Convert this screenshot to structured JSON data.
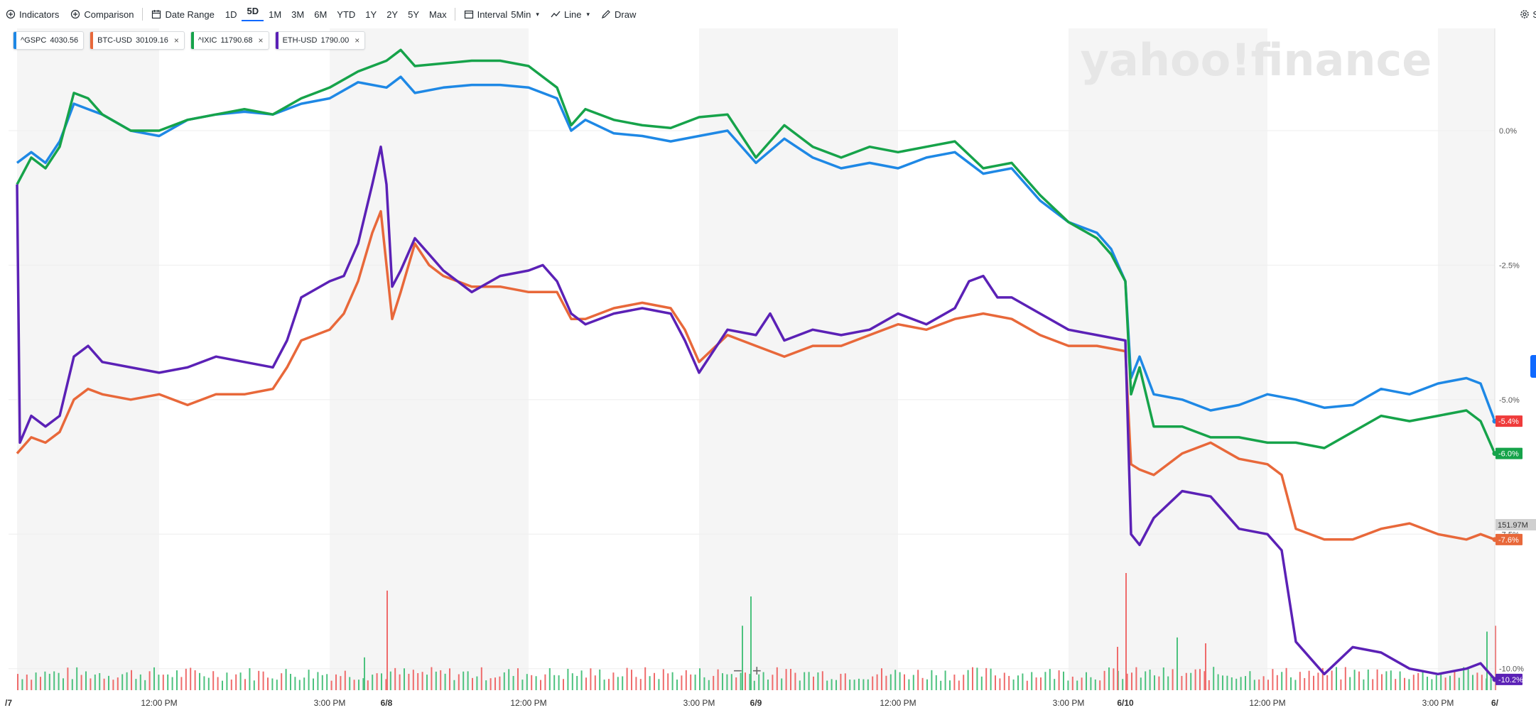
{
  "toolbar": {
    "indicators": "Indicators",
    "comparison": "Comparison",
    "date_range": "Date Range",
    "ranges": [
      "1D",
      "5D",
      "1M",
      "3M",
      "6M",
      "YTD",
      "1Y",
      "2Y",
      "5Y",
      "Max"
    ],
    "active_range": "5D",
    "interval": "Interval",
    "interval_value": "5Min",
    "line": "Line",
    "draw": "Draw",
    "settings": "S"
  },
  "chips": [
    {
      "symbol": "^GSPC",
      "value": "4030.56",
      "color": "#1e88e5",
      "closable": false
    },
    {
      "symbol": "BTC-USD",
      "value": "30109.16",
      "color": "#e8683a",
      "closable": true
    },
    {
      "symbol": "^IXIC",
      "value": "11790.68",
      "color": "#16a34a",
      "closable": true
    },
    {
      "symbol": "ETH-USD",
      "value": "1790.00",
      "color": "#5b21b6",
      "closable": true
    }
  ],
  "watermark": "yahoo!finance",
  "zoom": {
    "minus": "−",
    "plus": "+"
  },
  "chart_data": {
    "type": "line",
    "y_unit": "percent change",
    "ylim": [
      -10.4,
      1.9
    ],
    "y_ticks": [
      0.0,
      -2.5,
      -5.0,
      -7.5,
      -10.0
    ],
    "y_tick_labels": [
      "0.0%",
      "-2.5%",
      "-5.0%",
      "-7.5%",
      "-10.0%"
    ],
    "x_range": [
      -0.03,
      5.2
    ],
    "x_ticks": [
      {
        "x": 0.5,
        "label": "12:00 PM"
      },
      {
        "x": 1.1,
        "label": "3:00 PM"
      },
      {
        "x": 1.3,
        "label": "6/8",
        "bold": true
      },
      {
        "x": 1.8,
        "label": "12:00 PM"
      },
      {
        "x": 2.4,
        "label": "3:00 PM"
      },
      {
        "x": 2.6,
        "label": "6/9",
        "bold": true
      },
      {
        "x": 3.1,
        "label": "12:00 PM"
      },
      {
        "x": 3.7,
        "label": "3:00 PM"
      },
      {
        "x": 3.9,
        "label": "6/10",
        "bold": true
      },
      {
        "x": 4.4,
        "label": "12:00 PM"
      },
      {
        "x": 5.0,
        "label": "3:00 PM"
      },
      {
        "x": 5.2,
        "label": "6/",
        "bold": true
      },
      {
        "x": -0.03,
        "label": "/7",
        "bold": true
      }
    ],
    "shaded_x_ranges": [
      [
        0,
        0.5
      ],
      [
        1.1,
        1.8
      ],
      [
        2.4,
        3.1
      ],
      [
        3.7,
        4.4
      ],
      [
        5.0,
        5.2
      ]
    ],
    "series": [
      {
        "name": "^GSPC",
        "color": "#1e88e5",
        "last_label": "-5.4%",
        "last_bg": "#ef3b3b",
        "points": [
          [
            0,
            -0.6
          ],
          [
            0.05,
            -0.4
          ],
          [
            0.1,
            -0.6
          ],
          [
            0.15,
            -0.2
          ],
          [
            0.2,
            0.5
          ],
          [
            0.25,
            0.4
          ],
          [
            0.3,
            0.3
          ],
          [
            0.4,
            0.0
          ],
          [
            0.5,
            -0.1
          ],
          [
            0.6,
            0.2
          ],
          [
            0.7,
            0.3
          ],
          [
            0.8,
            0.35
          ],
          [
            0.9,
            0.3
          ],
          [
            1.0,
            0.5
          ],
          [
            1.1,
            0.6
          ],
          [
            1.2,
            0.9
          ],
          [
            1.3,
            0.8
          ],
          [
            1.35,
            1.0
          ],
          [
            1.4,
            0.7
          ],
          [
            1.5,
            0.8
          ],
          [
            1.6,
            0.85
          ],
          [
            1.7,
            0.85
          ],
          [
            1.8,
            0.8
          ],
          [
            1.9,
            0.6
          ],
          [
            1.95,
            0.0
          ],
          [
            2.0,
            0.2
          ],
          [
            2.1,
            -0.05
          ],
          [
            2.2,
            -0.1
          ],
          [
            2.3,
            -0.2
          ],
          [
            2.4,
            -0.1
          ],
          [
            2.5,
            0.0
          ],
          [
            2.6,
            -0.6
          ],
          [
            2.7,
            -0.15
          ],
          [
            2.8,
            -0.5
          ],
          [
            2.9,
            -0.7
          ],
          [
            3.0,
            -0.6
          ],
          [
            3.1,
            -0.7
          ],
          [
            3.2,
            -0.5
          ],
          [
            3.3,
            -0.4
          ],
          [
            3.4,
            -0.8
          ],
          [
            3.5,
            -0.7
          ],
          [
            3.6,
            -1.3
          ],
          [
            3.7,
            -1.7
          ],
          [
            3.8,
            -1.9
          ],
          [
            3.85,
            -2.2
          ],
          [
            3.9,
            -2.8
          ],
          [
            3.92,
            -4.6
          ],
          [
            3.95,
            -4.2
          ],
          [
            4.0,
            -4.9
          ],
          [
            4.1,
            -5.0
          ],
          [
            4.2,
            -5.2
          ],
          [
            4.3,
            -5.1
          ],
          [
            4.4,
            -4.9
          ],
          [
            4.5,
            -5.0
          ],
          [
            4.6,
            -5.15
          ],
          [
            4.7,
            -5.1
          ],
          [
            4.8,
            -4.8
          ],
          [
            4.9,
            -4.9
          ],
          [
            5.0,
            -4.7
          ],
          [
            5.1,
            -4.6
          ],
          [
            5.15,
            -4.7
          ],
          [
            5.2,
            -5.4
          ]
        ]
      },
      {
        "name": "^IXIC",
        "color": "#16a34a",
        "last_label": "-6.0%",
        "last_bg": "#16a34a",
        "points": [
          [
            0,
            -1.0
          ],
          [
            0.05,
            -0.5
          ],
          [
            0.1,
            -0.7
          ],
          [
            0.15,
            -0.3
          ],
          [
            0.2,
            0.7
          ],
          [
            0.25,
            0.6
          ],
          [
            0.3,
            0.3
          ],
          [
            0.4,
            0.0
          ],
          [
            0.5,
            0.0
          ],
          [
            0.6,
            0.2
          ],
          [
            0.7,
            0.3
          ],
          [
            0.8,
            0.4
          ],
          [
            0.9,
            0.3
          ],
          [
            1.0,
            0.6
          ],
          [
            1.1,
            0.8
          ],
          [
            1.2,
            1.1
          ],
          [
            1.3,
            1.3
          ],
          [
            1.35,
            1.5
          ],
          [
            1.4,
            1.2
          ],
          [
            1.5,
            1.25
          ],
          [
            1.6,
            1.3
          ],
          [
            1.7,
            1.3
          ],
          [
            1.8,
            1.2
          ],
          [
            1.9,
            0.8
          ],
          [
            1.95,
            0.1
          ],
          [
            2.0,
            0.4
          ],
          [
            2.1,
            0.2
          ],
          [
            2.2,
            0.1
          ],
          [
            2.3,
            0.05
          ],
          [
            2.4,
            0.25
          ],
          [
            2.5,
            0.3
          ],
          [
            2.6,
            -0.5
          ],
          [
            2.7,
            0.1
          ],
          [
            2.8,
            -0.3
          ],
          [
            2.9,
            -0.5
          ],
          [
            3.0,
            -0.3
          ],
          [
            3.1,
            -0.4
          ],
          [
            3.2,
            -0.3
          ],
          [
            3.3,
            -0.2
          ],
          [
            3.4,
            -0.7
          ],
          [
            3.5,
            -0.6
          ],
          [
            3.6,
            -1.2
          ],
          [
            3.7,
            -1.7
          ],
          [
            3.8,
            -2.0
          ],
          [
            3.85,
            -2.3
          ],
          [
            3.9,
            -2.8
          ],
          [
            3.92,
            -4.9
          ],
          [
            3.95,
            -4.4
          ],
          [
            4.0,
            -5.5
          ],
          [
            4.1,
            -5.5
          ],
          [
            4.2,
            -5.7
          ],
          [
            4.3,
            -5.7
          ],
          [
            4.4,
            -5.8
          ],
          [
            4.5,
            -5.8
          ],
          [
            4.6,
            -5.9
          ],
          [
            4.7,
            -5.6
          ],
          [
            4.8,
            -5.3
          ],
          [
            4.9,
            -5.4
          ],
          [
            5.0,
            -5.3
          ],
          [
            5.1,
            -5.2
          ],
          [
            5.15,
            -5.4
          ],
          [
            5.2,
            -6.0
          ]
        ]
      },
      {
        "name": "BTC-USD",
        "color": "#e8683a",
        "last_label": "-7.6%",
        "last_bg": "#e8683a",
        "points": [
          [
            0,
            -6.0
          ],
          [
            0.05,
            -5.7
          ],
          [
            0.1,
            -5.8
          ],
          [
            0.15,
            -5.6
          ],
          [
            0.2,
            -5.0
          ],
          [
            0.25,
            -4.8
          ],
          [
            0.3,
            -4.9
          ],
          [
            0.4,
            -5.0
          ],
          [
            0.5,
            -4.9
          ],
          [
            0.6,
            -5.1
          ],
          [
            0.7,
            -4.9
          ],
          [
            0.8,
            -4.9
          ],
          [
            0.9,
            -4.8
          ],
          [
            0.95,
            -4.4
          ],
          [
            1.0,
            -3.9
          ],
          [
            1.1,
            -3.7
          ],
          [
            1.15,
            -3.4
          ],
          [
            1.2,
            -2.8
          ],
          [
            1.25,
            -1.9
          ],
          [
            1.28,
            -1.5
          ],
          [
            1.3,
            -2.5
          ],
          [
            1.32,
            -3.5
          ],
          [
            1.35,
            -3.0
          ],
          [
            1.4,
            -2.1
          ],
          [
            1.45,
            -2.5
          ],
          [
            1.5,
            -2.7
          ],
          [
            1.6,
            -2.9
          ],
          [
            1.7,
            -2.9
          ],
          [
            1.8,
            -3.0
          ],
          [
            1.9,
            -3.0
          ],
          [
            1.95,
            -3.5
          ],
          [
            2.0,
            -3.5
          ],
          [
            2.1,
            -3.3
          ],
          [
            2.2,
            -3.2
          ],
          [
            2.3,
            -3.3
          ],
          [
            2.35,
            -3.7
          ],
          [
            2.4,
            -4.3
          ],
          [
            2.5,
            -3.8
          ],
          [
            2.6,
            -4.0
          ],
          [
            2.7,
            -4.2
          ],
          [
            2.8,
            -4.0
          ],
          [
            2.9,
            -4.0
          ],
          [
            3.0,
            -3.8
          ],
          [
            3.1,
            -3.6
          ],
          [
            3.2,
            -3.7
          ],
          [
            3.3,
            -3.5
          ],
          [
            3.4,
            -3.4
          ],
          [
            3.5,
            -3.5
          ],
          [
            3.6,
            -3.8
          ],
          [
            3.7,
            -4.0
          ],
          [
            3.8,
            -4.0
          ],
          [
            3.9,
            -4.1
          ],
          [
            3.92,
            -6.2
          ],
          [
            3.95,
            -6.3
          ],
          [
            4.0,
            -6.4
          ],
          [
            4.1,
            -6.0
          ],
          [
            4.2,
            -5.8
          ],
          [
            4.3,
            -6.1
          ],
          [
            4.4,
            -6.2
          ],
          [
            4.45,
            -6.4
          ],
          [
            4.5,
            -7.4
          ],
          [
            4.6,
            -7.6
          ],
          [
            4.7,
            -7.6
          ],
          [
            4.8,
            -7.4
          ],
          [
            4.9,
            -7.3
          ],
          [
            5.0,
            -7.5
          ],
          [
            5.1,
            -7.6
          ],
          [
            5.15,
            -7.5
          ],
          [
            5.2,
            -7.6
          ]
        ]
      },
      {
        "name": "ETH-USD",
        "color": "#5b21b6",
        "last_label": "-10.2%",
        "last_bg": "#5b21b6",
        "points": [
          [
            0,
            -1.0
          ],
          [
            0.01,
            -5.8
          ],
          [
            0.05,
            -5.3
          ],
          [
            0.1,
            -5.5
          ],
          [
            0.15,
            -5.3
          ],
          [
            0.2,
            -4.2
          ],
          [
            0.25,
            -4.0
          ],
          [
            0.3,
            -4.3
          ],
          [
            0.4,
            -4.4
          ],
          [
            0.5,
            -4.5
          ],
          [
            0.6,
            -4.4
          ],
          [
            0.7,
            -4.2
          ],
          [
            0.8,
            -4.3
          ],
          [
            0.9,
            -4.4
          ],
          [
            0.95,
            -3.9
          ],
          [
            1.0,
            -3.1
          ],
          [
            1.1,
            -2.8
          ],
          [
            1.15,
            -2.7
          ],
          [
            1.2,
            -2.1
          ],
          [
            1.25,
            -1.0
          ],
          [
            1.28,
            -0.3
          ],
          [
            1.3,
            -1.0
          ],
          [
            1.32,
            -2.9
          ],
          [
            1.35,
            -2.6
          ],
          [
            1.4,
            -2.0
          ],
          [
            1.45,
            -2.3
          ],
          [
            1.5,
            -2.6
          ],
          [
            1.6,
            -3.0
          ],
          [
            1.7,
            -2.7
          ],
          [
            1.8,
            -2.6
          ],
          [
            1.85,
            -2.5
          ],
          [
            1.9,
            -2.8
          ],
          [
            1.95,
            -3.4
          ],
          [
            2.0,
            -3.6
          ],
          [
            2.1,
            -3.4
          ],
          [
            2.2,
            -3.3
          ],
          [
            2.3,
            -3.4
          ],
          [
            2.35,
            -3.9
          ],
          [
            2.4,
            -4.5
          ],
          [
            2.5,
            -3.7
          ],
          [
            2.6,
            -3.8
          ],
          [
            2.65,
            -3.4
          ],
          [
            2.7,
            -3.9
          ],
          [
            2.8,
            -3.7
          ],
          [
            2.9,
            -3.8
          ],
          [
            3.0,
            -3.7
          ],
          [
            3.1,
            -3.4
          ],
          [
            3.2,
            -3.6
          ],
          [
            3.3,
            -3.3
          ],
          [
            3.35,
            -2.8
          ],
          [
            3.4,
            -2.7
          ],
          [
            3.45,
            -3.1
          ],
          [
            3.5,
            -3.1
          ],
          [
            3.6,
            -3.4
          ],
          [
            3.7,
            -3.7
          ],
          [
            3.8,
            -3.8
          ],
          [
            3.9,
            -3.9
          ],
          [
            3.92,
            -7.5
          ],
          [
            3.95,
            -7.7
          ],
          [
            4.0,
            -7.2
          ],
          [
            4.1,
            -6.7
          ],
          [
            4.2,
            -6.8
          ],
          [
            4.3,
            -7.4
          ],
          [
            4.4,
            -7.5
          ],
          [
            4.45,
            -7.8
          ],
          [
            4.5,
            -9.5
          ],
          [
            4.6,
            -10.1
          ],
          [
            4.7,
            -9.6
          ],
          [
            4.8,
            -9.7
          ],
          [
            4.9,
            -10.0
          ],
          [
            5.0,
            -10.1
          ],
          [
            5.1,
            -10.0
          ],
          [
            5.15,
            -9.9
          ],
          [
            5.2,
            -10.2
          ]
        ]
      }
    ],
    "volume_axis_label": "151.97M",
    "volume": {
      "seed": 7,
      "spikes": [
        {
          "x": 1.22,
          "h": 0.28,
          "c": "g"
        },
        {
          "x": 1.3,
          "h": 0.85,
          "c": "r"
        },
        {
          "x": 2.55,
          "h": 0.55,
          "c": "g"
        },
        {
          "x": 2.58,
          "h": 0.8,
          "c": "g"
        },
        {
          "x": 3.87,
          "h": 0.37,
          "c": "r"
        },
        {
          "x": 3.9,
          "h": 1.0,
          "c": "r"
        },
        {
          "x": 4.08,
          "h": 0.45,
          "c": "g"
        },
        {
          "x": 4.18,
          "h": 0.4,
          "c": "r"
        },
        {
          "x": 5.17,
          "h": 0.5,
          "c": "g"
        },
        {
          "x": 5.2,
          "h": 0.55,
          "c": "r"
        }
      ]
    }
  }
}
